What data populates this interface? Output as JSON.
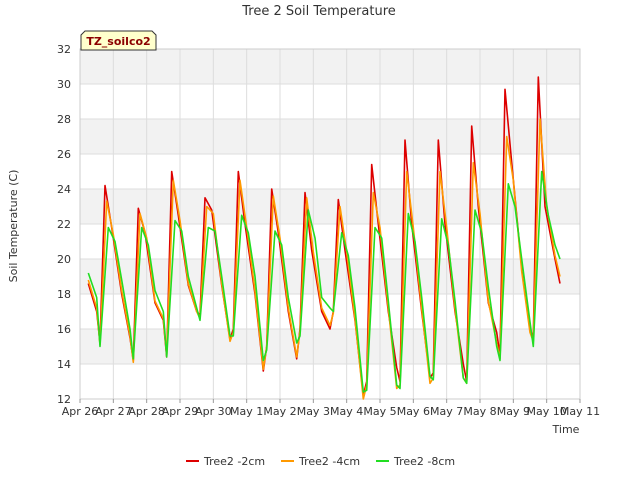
{
  "chart_data": {
    "type": "line",
    "title": "Tree 2 Soil Temperature",
    "xlabel": "Time",
    "ylabel": "Soil Temperature (C)",
    "annotation": "TZ_soilco2",
    "ylim": [
      12,
      32
    ],
    "y_ticks": [
      12,
      14,
      16,
      18,
      20,
      22,
      24,
      26,
      28,
      30,
      32
    ],
    "xlim": [
      0,
      15
    ],
    "x_ticks": [
      {
        "v": 0,
        "label": "Apr 26"
      },
      {
        "v": 1,
        "label": "Apr 27"
      },
      {
        "v": 2,
        "label": "Apr 28"
      },
      {
        "v": 3,
        "label": "Apr 29"
      },
      {
        "v": 4,
        "label": "Apr 30"
      },
      {
        "v": 5,
        "label": "May 1"
      },
      {
        "v": 6,
        "label": "May 2"
      },
      {
        "v": 7,
        "label": "May 3"
      },
      {
        "v": 8,
        "label": "May 4"
      },
      {
        "v": 9,
        "label": "May 5"
      },
      {
        "v": 10,
        "label": "May 6"
      },
      {
        "v": 11,
        "label": "May 7"
      },
      {
        "v": 12,
        "label": "May 8"
      },
      {
        "v": 13,
        "label": "May 9"
      },
      {
        "v": 14,
        "label": "May 10"
      },
      {
        "v": 15,
        "label": "May 11"
      }
    ],
    "grid": true,
    "legend_position": "bottom",
    "series": [
      {
        "name": "Tree2 -2cm",
        "color": "#dd0000",
        "x": [
          0.25,
          0.5,
          0.6,
          0.75,
          0.95,
          1.25,
          1.5,
          1.6,
          1.75,
          1.95,
          2.25,
          2.5,
          2.6,
          2.75,
          2.95,
          3.25,
          3.5,
          3.6,
          3.75,
          3.95,
          4.25,
          4.5,
          4.6,
          4.75,
          4.95,
          5.25,
          5.5,
          5.6,
          5.75,
          5.95,
          6.25,
          6.5,
          6.6,
          6.75,
          6.95,
          7.25,
          7.5,
          7.6,
          7.75,
          7.95,
          8.25,
          8.5,
          8.6,
          8.75,
          8.95,
          9.25,
          9.5,
          9.6,
          9.75,
          9.95,
          10.25,
          10.5,
          10.6,
          10.75,
          10.95,
          11.25,
          11.5,
          11.6,
          11.75,
          11.95,
          12.25,
          12.5,
          12.6,
          12.75,
          12.95,
          13.25,
          13.5,
          13.6,
          13.75,
          13.95,
          14.25,
          14.4
        ],
        "y": [
          18.6,
          17.0,
          15.2,
          24.2,
          21.8,
          18.0,
          15.5,
          14.2,
          22.9,
          21.5,
          17.5,
          16.5,
          14.4,
          25.0,
          22.5,
          18.5,
          17.0,
          16.8,
          23.5,
          22.8,
          18.5,
          15.4,
          16.0,
          25.0,
          22.0,
          18.0,
          13.6,
          15.0,
          24.0,
          21.5,
          17.0,
          14.3,
          16.0,
          23.8,
          20.5,
          17.0,
          16.0,
          17.0,
          23.4,
          20.5,
          16.5,
          12.2,
          13.0,
          25.4,
          22.0,
          17.0,
          13.8,
          13.0,
          26.8,
          22.0,
          17.0,
          13.2,
          13.5,
          26.8,
          22.0,
          17.0,
          14.0,
          13.0,
          27.6,
          23.0,
          17.5,
          15.8,
          14.5,
          29.7,
          25.5,
          19.5,
          16.0,
          15.5,
          30.4,
          23.0,
          20.0,
          18.6
        ]
      },
      {
        "name": "Tree2 -4cm",
        "color": "#ff9900",
        "x": [
          0.25,
          0.5,
          0.6,
          0.8,
          1.0,
          1.25,
          1.5,
          1.6,
          1.8,
          2.0,
          2.25,
          2.5,
          2.6,
          2.8,
          3.0,
          3.25,
          3.5,
          3.6,
          3.8,
          4.0,
          4.25,
          4.5,
          4.6,
          4.8,
          5.0,
          5.25,
          5.5,
          5.6,
          5.8,
          6.0,
          6.25,
          6.5,
          6.6,
          6.8,
          7.0,
          7.25,
          7.5,
          7.6,
          7.8,
          8.0,
          8.25,
          8.5,
          8.6,
          8.8,
          9.0,
          9.25,
          9.5,
          9.6,
          9.8,
          10.0,
          10.25,
          10.5,
          10.6,
          10.8,
          11.0,
          11.25,
          11.5,
          11.6,
          11.8,
          12.0,
          12.25,
          12.5,
          12.6,
          12.8,
          13.0,
          13.25,
          13.5,
          13.6,
          13.8,
          14.0,
          14.25,
          14.4
        ],
        "y": [
          18.8,
          17.2,
          15.1,
          23.3,
          21.4,
          18.2,
          15.6,
          14.1,
          22.6,
          21.2,
          17.6,
          16.6,
          14.5,
          24.5,
          22.2,
          18.6,
          17.0,
          16.6,
          23.0,
          22.6,
          18.6,
          15.3,
          15.8,
          24.5,
          21.8,
          18.2,
          13.7,
          15.0,
          23.6,
          21.2,
          17.2,
          14.4,
          15.9,
          23.5,
          20.4,
          17.2,
          16.2,
          16.9,
          23.0,
          20.4,
          16.6,
          12.0,
          12.8,
          23.8,
          21.8,
          17.2,
          12.6,
          12.8,
          25.0,
          21.8,
          17.2,
          12.9,
          13.2,
          25.0,
          21.8,
          17.2,
          13.2,
          12.9,
          25.5,
          22.6,
          17.6,
          15.2,
          14.3,
          27.0,
          24.5,
          19.3,
          15.8,
          15.3,
          28.0,
          23.0,
          20.2,
          19.0
        ]
      },
      {
        "name": "Tree2 -8cm",
        "color": "#22dd22",
        "x": [
          0.25,
          0.5,
          0.6,
          0.85,
          1.05,
          1.25,
          1.5,
          1.6,
          1.85,
          2.05,
          2.25,
          2.5,
          2.6,
          2.85,
          3.05,
          3.25,
          3.5,
          3.6,
          3.85,
          4.05,
          4.25,
          4.5,
          4.6,
          4.85,
          5.05,
          5.25,
          5.5,
          5.6,
          5.85,
          6.05,
          6.25,
          6.5,
          6.6,
          6.85,
          7.05,
          7.25,
          7.5,
          7.6,
          7.85,
          8.05,
          8.25,
          8.5,
          8.6,
          8.85,
          9.05,
          9.25,
          9.5,
          9.6,
          9.85,
          10.05,
          10.25,
          10.5,
          10.6,
          10.85,
          11.05,
          11.25,
          11.5,
          11.6,
          11.85,
          12.05,
          12.25,
          12.5,
          12.6,
          12.85,
          13.05,
          13.25,
          13.5,
          13.6,
          13.85,
          14.05,
          14.25,
          14.4
        ],
        "y": [
          19.2,
          17.8,
          15.0,
          21.8,
          21.0,
          18.8,
          16.0,
          14.3,
          21.8,
          20.8,
          18.2,
          17.0,
          14.4,
          22.2,
          21.6,
          19.0,
          17.2,
          16.5,
          21.8,
          21.6,
          19.0,
          15.6,
          15.6,
          22.5,
          21.5,
          19.0,
          14.2,
          14.8,
          21.6,
          20.8,
          17.8,
          15.2,
          15.6,
          22.8,
          21.2,
          17.8,
          17.2,
          17.0,
          21.5,
          20.2,
          17.2,
          12.4,
          12.5,
          21.8,
          21.2,
          17.6,
          12.8,
          12.6,
          22.6,
          21.0,
          17.8,
          13.3,
          13.1,
          22.3,
          20.8,
          17.6,
          13.2,
          12.9,
          22.8,
          21.5,
          18.4,
          15.0,
          14.2,
          24.3,
          23.0,
          20.0,
          16.4,
          15.0,
          25.0,
          22.5,
          20.8,
          20.0
        ]
      }
    ]
  }
}
